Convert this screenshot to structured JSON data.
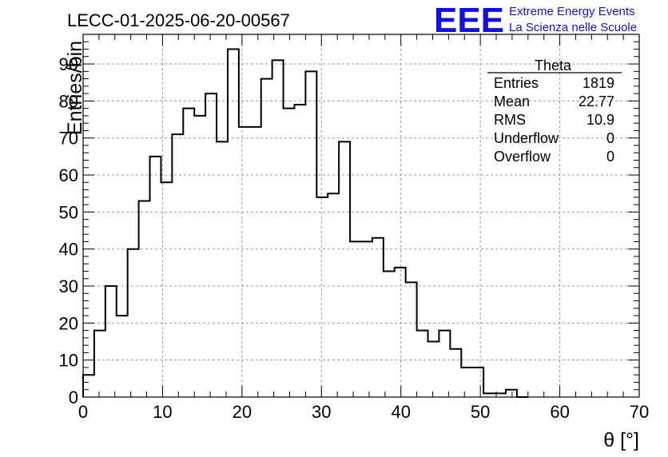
{
  "header": {
    "run_title": "LECC-01-2025-06-20-00567",
    "logo_mark": "EEE",
    "logo_line1": "Extreme Energy Events",
    "logo_line2": "La Scienza nelle Scuole",
    "logo_color": "#1010e6"
  },
  "stats_box": {
    "title": "Theta",
    "rows": [
      {
        "label": "Entries",
        "value": "1819"
      },
      {
        "label": "Mean",
        "value": "22.77"
      },
      {
        "label": "RMS",
        "value": "10.9"
      },
      {
        "label": "Underflow",
        "value": "0"
      },
      {
        "label": "Overflow",
        "value": "0"
      }
    ]
  },
  "chart_data": {
    "type": "histogram",
    "title": "LECC-01-2025-06-20-00567",
    "xlabel": "θ [°]",
    "ylabel": "Entries/bin",
    "xlim": [
      0,
      70
    ],
    "ylim": [
      0,
      98
    ],
    "x_ticks": [
      0,
      10,
      20,
      30,
      40,
      50,
      60,
      70
    ],
    "y_ticks": [
      0,
      10,
      20,
      30,
      40,
      50,
      60,
      70,
      80,
      90
    ],
    "grid": true,
    "bin_edges_start": 0,
    "bin_width": 1.4,
    "values": [
      6,
      18,
      30,
      22,
      40,
      53,
      65,
      58,
      71,
      78,
      76,
      82,
      69,
      94,
      73,
      73,
      86,
      91,
      78,
      79,
      88,
      54,
      55,
      69,
      42,
      42,
      43,
      34,
      35,
      31,
      18,
      15,
      18,
      13,
      8,
      8,
      1,
      1,
      2,
      0
    ],
    "line_color": "#000000",
    "grid_color": "#9a9a9a"
  }
}
